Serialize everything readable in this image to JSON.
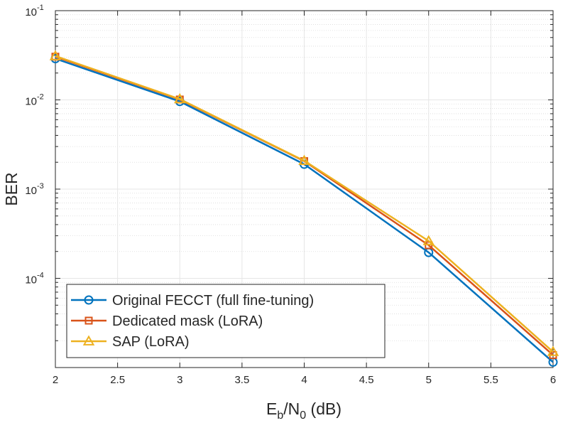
{
  "chart_data": {
    "type": "line",
    "title": "",
    "xlabel": {
      "E": "E",
      "b": "b",
      "slash": "/N",
      "zero": "0",
      "unit": " (dB)"
    },
    "ylabel": "BER",
    "yscale": "log",
    "xlim": [
      2,
      6
    ],
    "ylim": [
      1e-05,
      0.1
    ],
    "grid": true,
    "minor_grid": true,
    "legend_position": "bottom-left",
    "x": [
      2,
      3,
      4,
      5,
      6
    ],
    "x_ticks": [
      {
        "value": 2,
        "label": "2"
      },
      {
        "value": 2.5,
        "label": "2.5"
      },
      {
        "value": 3,
        "label": "3"
      },
      {
        "value": 3.5,
        "label": "3.5"
      },
      {
        "value": 4,
        "label": "4"
      },
      {
        "value": 4.5,
        "label": "4.5"
      },
      {
        "value": 5,
        "label": "5"
      },
      {
        "value": 5.5,
        "label": "5.5"
      },
      {
        "value": 6,
        "label": "6"
      }
    ],
    "y_ticks": [
      {
        "value": 0.1,
        "base": "10",
        "exp": "-1"
      },
      {
        "value": 0.01,
        "base": "10",
        "exp": "-2"
      },
      {
        "value": 0.001,
        "base": "10",
        "exp": "-3"
      },
      {
        "value": 0.0001,
        "base": "10",
        "exp": "-4"
      }
    ],
    "series": [
      {
        "name": "Original FECCT (full fine-tuning)",
        "color": "#0072BD",
        "marker": "circle",
        "values": [
          0.029,
          0.0096,
          0.0019,
          0.000195,
          1.15e-05
        ]
      },
      {
        "name": "Dedicated mask (LoRA)",
        "color": "#D95319",
        "marker": "square",
        "values": [
          0.0305,
          0.0101,
          0.00206,
          0.000235,
          1.38e-05
        ]
      },
      {
        "name": "SAP (LoRA)",
        "color": "#EDB120",
        "marker": "triangle",
        "values": [
          0.031,
          0.0102,
          0.00208,
          0.000262,
          1.5e-05
        ]
      }
    ]
  }
}
